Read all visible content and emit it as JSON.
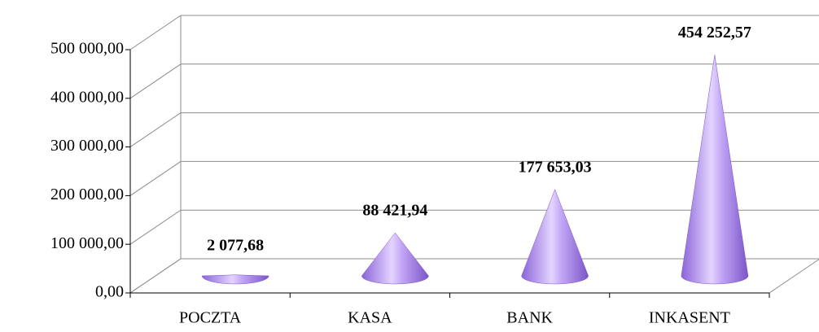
{
  "chart_data": {
    "type": "cone",
    "categories": [
      "POCZTA",
      "KASA",
      "BANK",
      "INKASENT"
    ],
    "values": [
      2077.68,
      88421.94,
      177653.03,
      454252.57
    ],
    "value_labels": [
      "2 077,68",
      "88 421,94",
      "177 653,03",
      "454 252,57"
    ],
    "color": "#b08ef0",
    "ylim": [
      0,
      500000
    ],
    "yticks": [
      {
        "value": 0,
        "label": "0,00"
      },
      {
        "value": 100000,
        "label": "100 000,00"
      },
      {
        "value": 200000,
        "label": "200 000,00"
      },
      {
        "value": 300000,
        "label": "300 000,00"
      },
      {
        "value": 400000,
        "label": "400 000,00"
      },
      {
        "value": 500000,
        "label": "500 000,00"
      }
    ],
    "grid": true
  }
}
